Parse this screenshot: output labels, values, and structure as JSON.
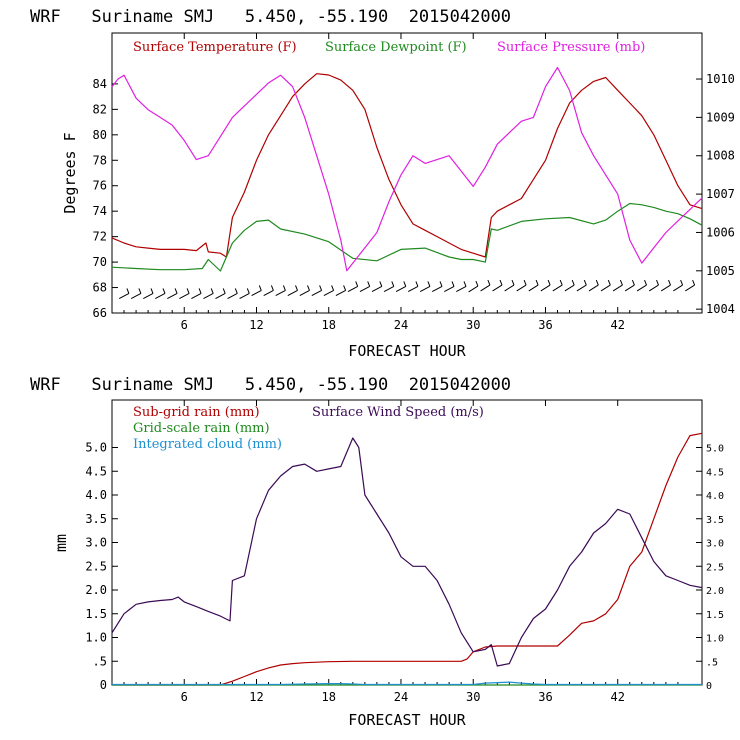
{
  "colors": {
    "temperature": "#b00000",
    "dewpoint": "#1f8a1f",
    "pressure": "#e020e0",
    "subgrid_rain": "#b00000",
    "grid_rain": "#1f8a1f",
    "cloud": "#1e90d0",
    "wind": "#3a0a55",
    "axes": "#000000"
  },
  "chart_data": [
    {
      "type": "line",
      "header": "WRF   Suriname SMJ   5.450, -55.190  2015042000",
      "xlabel": "FORECAST HOUR",
      "ylabel": "Degrees F",
      "xlim": [
        0,
        49
      ],
      "ylim": [
        66,
        88
      ],
      "y2lim": [
        1003.9,
        1011.2
      ],
      "x_ticks": [
        "6",
        "12",
        "18",
        "24",
        "30",
        "36",
        "42"
      ],
      "y_ticks": [
        "66",
        "68",
        "70",
        "72",
        "74",
        "76",
        "78",
        "80",
        "82",
        "84"
      ],
      "y2_ticks": [
        "1004",
        "1005",
        "1006",
        "1007",
        "1008",
        "1009",
        "1010"
      ],
      "legend": [
        "Surface Temperature (F)",
        "Surface Dewpoint (F)",
        "Surface Pressure (mb)"
      ],
      "series": [
        {
          "name": "Surface Temperature (F)",
          "axis": "left",
          "x": [
            0,
            1,
            2,
            3,
            4,
            5,
            6,
            7,
            7.8,
            8,
            9,
            9.5,
            10,
            11,
            12,
            13,
            14,
            15,
            16,
            17,
            18,
            19,
            20,
            21,
            22,
            23,
            24,
            25,
            26,
            27,
            28,
            29,
            30,
            31,
            31.5,
            32,
            33,
            34,
            35,
            36,
            37,
            38,
            39,
            40,
            41,
            42,
            43,
            44,
            45,
            46,
            47,
            48,
            49
          ],
          "values": [
            71.9,
            71.5,
            71.2,
            71.1,
            71.0,
            71.0,
            71.0,
            70.9,
            71.5,
            70.8,
            70.7,
            70.4,
            73.5,
            75.5,
            78.0,
            80.0,
            81.5,
            83.0,
            84.0,
            84.8,
            84.7,
            84.3,
            83.5,
            82.0,
            79.0,
            76.5,
            74.5,
            73.0,
            72.5,
            72.0,
            71.5,
            71.0,
            70.7,
            70.4,
            73.5,
            74.0,
            74.5,
            75.0,
            76.5,
            78.0,
            80.5,
            82.5,
            83.5,
            84.2,
            84.5,
            83.5,
            82.5,
            81.5,
            80.0,
            78.0,
            76.0,
            74.5,
            74.2
          ]
        },
        {
          "name": "Surface Dewpoint (F)",
          "axis": "left",
          "x": [
            0,
            2,
            4,
            6,
            7.5,
            8,
            9,
            10,
            11,
            12,
            13,
            14,
            16,
            18,
            20,
            22,
            24,
            26,
            28,
            29,
            30,
            31,
            31.5,
            32,
            34,
            36,
            38,
            40,
            41,
            42,
            43,
            44,
            45,
            46,
            47,
            48,
            49
          ],
          "values": [
            69.6,
            69.5,
            69.4,
            69.4,
            69.5,
            70.2,
            69.3,
            71.5,
            72.5,
            73.2,
            73.3,
            72.6,
            72.2,
            71.6,
            70.3,
            70.1,
            71.0,
            71.1,
            70.4,
            70.2,
            70.2,
            70.0,
            72.6,
            72.5,
            73.2,
            73.4,
            73.5,
            73.0,
            73.3,
            74.0,
            74.6,
            74.5,
            74.3,
            74.0,
            73.8,
            73.4,
            72.9
          ]
        },
        {
          "name": "Surface Pressure (mb)",
          "axis": "right",
          "x": [
            0,
            0.5,
            1,
            1.5,
            2,
            3,
            4,
            5,
            6,
            7,
            8,
            9,
            10,
            11,
            12,
            13,
            14,
            15,
            16,
            17,
            18,
            19,
            19.5,
            20,
            21,
            22,
            23,
            24,
            25,
            26,
            27,
            28,
            29,
            30,
            31,
            32,
            33,
            34,
            35,
            36,
            37,
            38,
            39,
            40,
            41,
            42,
            43,
            44,
            45,
            46,
            47,
            48,
            49
          ],
          "values": [
            1009.8,
            1010.0,
            1010.1,
            1009.8,
            1009.5,
            1009.2,
            1009.0,
            1008.8,
            1008.4,
            1007.9,
            1008.0,
            1008.5,
            1009.0,
            1009.3,
            1009.6,
            1009.9,
            1010.1,
            1009.8,
            1009.0,
            1008.0,
            1007.0,
            1005.8,
            1005.0,
            1005.2,
            1005.6,
            1006.0,
            1006.8,
            1007.5,
            1008.0,
            1007.8,
            1007.9,
            1008.0,
            1007.6,
            1007.2,
            1007.7,
            1008.3,
            1008.6,
            1008.9,
            1009.0,
            1009.8,
            1010.3,
            1009.7,
            1008.6,
            1008.0,
            1007.5,
            1007.0,
            1005.8,
            1005.2,
            1005.6,
            1006.0,
            1006.3,
            1006.6,
            1006.9
          ]
        }
      ]
    },
    {
      "type": "line",
      "header": "WRF   Suriname SMJ   5.450, -55.190  2015042000",
      "xlabel": "FORECAST HOUR",
      "ylabel": "mm",
      "xlim": [
        0,
        49
      ],
      "ylim": [
        0,
        6
      ],
      "y2lim": [
        0,
        6
      ],
      "x_ticks": [
        "6",
        "12",
        "18",
        "24",
        "30",
        "36",
        "42"
      ],
      "y_ticks": [
        "0",
        ".5",
        "1.0",
        "1.5",
        "2.0",
        "2.5",
        "3.0",
        "3.5",
        "4.0",
        "4.5",
        "5.0"
      ],
      "y2_ticks": [
        "0",
        ".5",
        "1.0",
        "1.5",
        "2.0",
        "2.5",
        "3.0",
        "3.5",
        "4.0",
        "4.5",
        "5.0"
      ],
      "legend": [
        "Sub-grid rain (mm)",
        "Surface Wind Speed (m/s)",
        "Grid-scale rain (mm)",
        "Integrated cloud (mm)"
      ],
      "series": [
        {
          "name": "Sub-grid rain (mm)",
          "axis": "left",
          "x": [
            0,
            9,
            10,
            11,
            12,
            13,
            14,
            15,
            16,
            18,
            20,
            22,
            24,
            26,
            28,
            29,
            29.5,
            30,
            31,
            32,
            33,
            34,
            35,
            36,
            37,
            38,
            39,
            40,
            41,
            42,
            43,
            44,
            45,
            46,
            47,
            48,
            49
          ],
          "values": [
            0,
            0,
            0.08,
            0.18,
            0.28,
            0.36,
            0.42,
            0.45,
            0.47,
            0.49,
            0.5,
            0.5,
            0.5,
            0.5,
            0.5,
            0.5,
            0.55,
            0.7,
            0.8,
            0.82,
            0.82,
            0.82,
            0.82,
            0.82,
            0.82,
            1.05,
            1.3,
            1.35,
            1.5,
            1.8,
            2.5,
            2.8,
            3.5,
            4.2,
            4.8,
            5.25,
            5.3
          ]
        },
        {
          "name": "Surface Wind Speed (m/s)",
          "axis": "right",
          "x": [
            0,
            1,
            2,
            3,
            4,
            5,
            5.5,
            6,
            7,
            8,
            9,
            9.8,
            10,
            11,
            12,
            13,
            14,
            15,
            16,
            17,
            18,
            19,
            20,
            20.5,
            21,
            22,
            23,
            24,
            25,
            26,
            27,
            28,
            29,
            30,
            31,
            31.5,
            32,
            33,
            34,
            35,
            36,
            37,
            38,
            39,
            40,
            41,
            42,
            43,
            44,
            45,
            46,
            47,
            48,
            49
          ],
          "values": [
            1.1,
            1.5,
            1.7,
            1.75,
            1.78,
            1.8,
            1.85,
            1.75,
            1.65,
            1.55,
            1.45,
            1.35,
            2.2,
            2.3,
            3.5,
            4.1,
            4.4,
            4.6,
            4.65,
            4.5,
            4.55,
            4.6,
            5.2,
            5.0,
            4.0,
            3.6,
            3.2,
            2.7,
            2.5,
            2.5,
            2.2,
            1.7,
            1.1,
            0.7,
            0.75,
            0.85,
            0.4,
            0.45,
            1.0,
            1.4,
            1.6,
            2.0,
            2.5,
            2.8,
            3.2,
            3.4,
            3.7,
            3.6,
            3.1,
            2.6,
            2.3,
            2.2,
            2.1,
            2.05
          ]
        },
        {
          "name": "Grid-scale rain (mm)",
          "axis": "left",
          "x": [
            0,
            49
          ],
          "values": [
            0,
            0
          ]
        },
        {
          "name": "Integrated cloud (mm)",
          "axis": "left",
          "x": [
            0,
            14,
            16,
            18,
            19,
            20,
            21,
            30,
            31,
            33,
            34,
            35,
            36,
            49
          ],
          "values": [
            0.01,
            0.01,
            0.02,
            0.03,
            0.03,
            0.02,
            0.01,
            0.01,
            0.04,
            0.06,
            0.04,
            0.02,
            0.01,
            0.01
          ]
        }
      ]
    }
  ]
}
